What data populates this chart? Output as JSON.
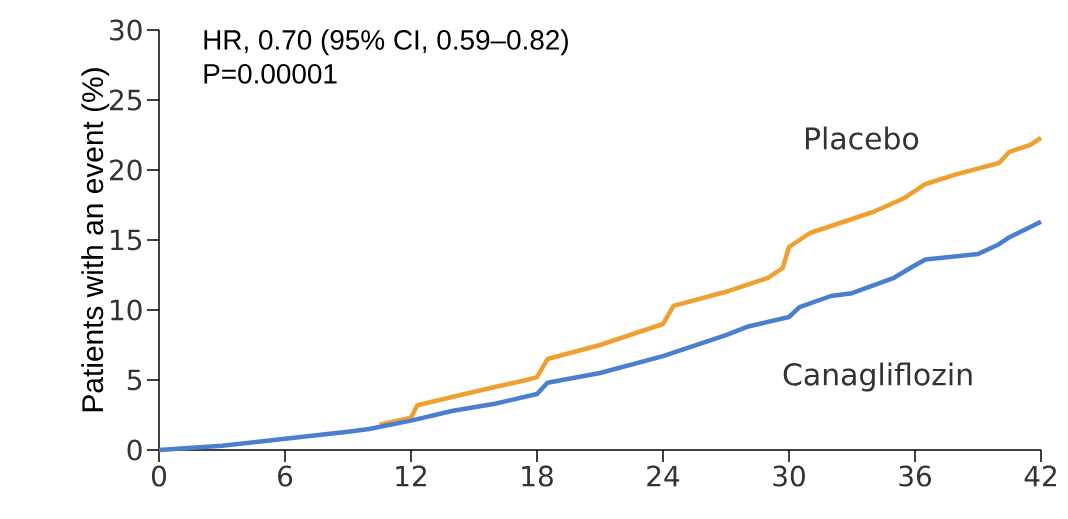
{
  "chart_data": {
    "type": "line",
    "ylabel": "Patients with an event (%)",
    "annotations": [
      "HR, 0.70 (95% CI, 0.59–0.82)",
      "P=0.00001"
    ],
    "xlim": [
      0,
      42
    ],
    "xticks": [
      0,
      6,
      12,
      18,
      24,
      30,
      36,
      42
    ],
    "ylim": [
      0,
      30
    ],
    "yticks": [
      0,
      5,
      10,
      15,
      20,
      25,
      30
    ],
    "series": [
      {
        "name": "Placebo",
        "color": "#f0a030",
        "x": [
          10.5,
          12,
          12.3,
          14,
          16,
          17.5,
          18,
          18.5,
          21,
          23,
          24,
          24.5,
          27,
          29,
          29.7,
          30,
          31,
          32,
          33,
          34,
          35.5,
          36.5,
          38,
          40,
          40.5,
          41.5,
          42
        ],
        "values": [
          1.8,
          2.3,
          3.2,
          3.8,
          4.5,
          5,
          5.2,
          6.5,
          7.5,
          8.5,
          9,
          10.3,
          11.3,
          12.3,
          13,
          14.5,
          15.5,
          16,
          16.5,
          17,
          18,
          19,
          19.7,
          20.5,
          21.3,
          21.8,
          22.3
        ]
      },
      {
        "name": "Canagliflozin",
        "color": "#4a7fd0",
        "x": [
          0,
          3,
          6,
          9,
          10,
          12,
          14,
          16,
          18,
          18.5,
          21,
          24,
          25,
          27,
          28,
          30,
          30.5,
          32,
          33,
          35,
          36,
          36.5,
          39,
          40,
          40.5,
          42
        ],
        "values": [
          0,
          0.3,
          0.8,
          1.3,
          1.5,
          2.1,
          2.8,
          3.3,
          4,
          4.8,
          5.5,
          6.7,
          7.2,
          8.2,
          8.8,
          9.5,
          10.2,
          11,
          11.2,
          12.3,
          13.2,
          13.6,
          14,
          14.7,
          15.2,
          16.3
        ]
      }
    ]
  }
}
